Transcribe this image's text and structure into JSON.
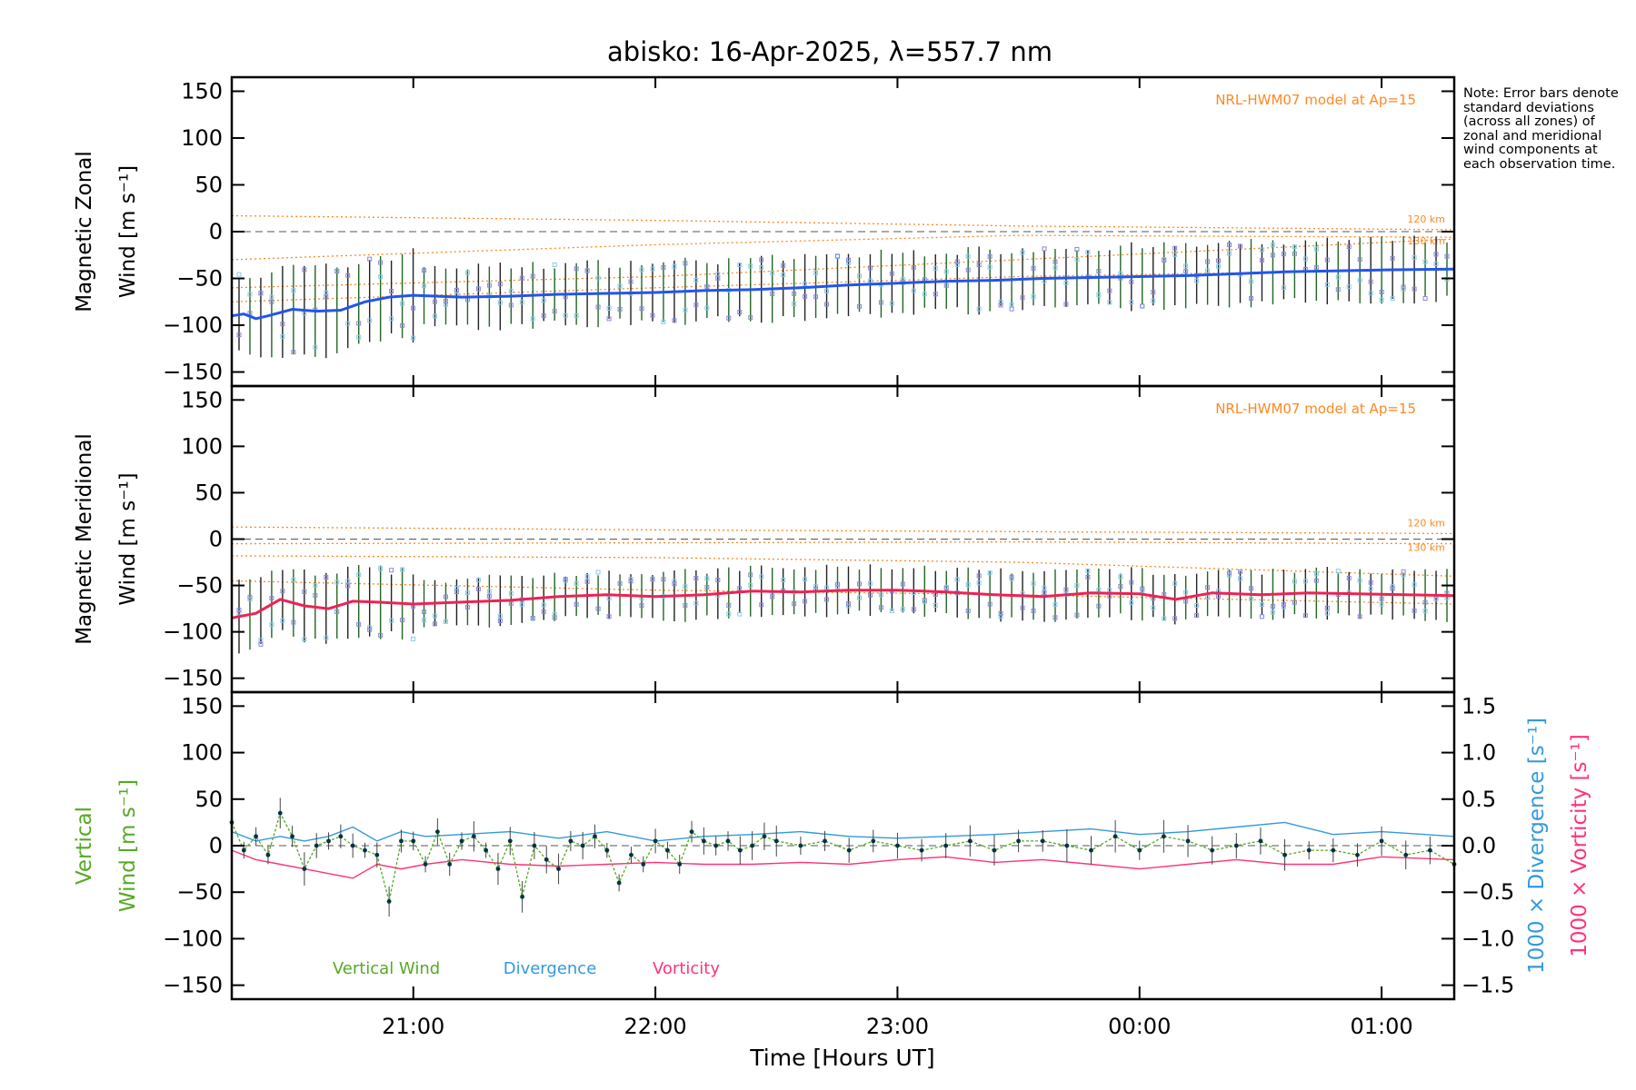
{
  "title": "abisko: 16-Apr-2025, λ=557.7 nm",
  "note": "Note: Error bars denote standard deviations (across all zones) of zonal and meridional wind components at each observation time.",
  "colors": {
    "zonal": "#2255ee",
    "meridional": "#ee2255",
    "vertical": "#55aa22",
    "divergence": "#3399dd",
    "vorticity": "#ff3377",
    "model": "#ff8822",
    "errorbar": "#222222",
    "errorbar_alt": "#226622",
    "zone_markers": "#8888dd",
    "zone_markers_alt": "#88ccee"
  },
  "chart_data": [
    {
      "type": "line",
      "panel": "zonal",
      "ylabel_line1": "Magnetic Zonal",
      "ylabel_line2": "Wind [m s⁻¹]",
      "ylim": [
        -165,
        165
      ],
      "yticks": [
        150,
        100,
        50,
        0,
        -50,
        -100,
        -150
      ],
      "xlim": [
        20.25,
        25.3
      ],
      "model_label": "NRL-HWM07 model at Ap=15",
      "model_alt_labels": [
        "120 km",
        "130 km"
      ],
      "model_series": [
        {
          "x": [
            20.25,
            22.0,
            23.5,
            25.3
          ],
          "y": [
            17,
            12,
            6,
            2
          ]
        },
        {
          "x": [
            20.25,
            22.0,
            23.5,
            25.3
          ],
          "y": [
            -30,
            -14,
            -4,
            -6
          ]
        },
        {
          "x": [
            20.25,
            22.0,
            23.5,
            25.3
          ],
          "y": [
            -60,
            -48,
            -30,
            -8
          ]
        },
        {
          "x": [
            20.25,
            22.0,
            23.5,
            25.3
          ],
          "y": [
            -75,
            -60,
            -48,
            -40
          ]
        }
      ],
      "series": [
        {
          "x": [
            20.25,
            20.3,
            20.35,
            20.4,
            20.5,
            20.6,
            20.7,
            20.8,
            20.9,
            21.0,
            21.2,
            21.4,
            21.6,
            21.8,
            22.0,
            22.2,
            22.4,
            22.6,
            22.8,
            23.0,
            23.2,
            23.4,
            23.6,
            23.8,
            24.0,
            24.2,
            24.4,
            24.6,
            24.8,
            25.0,
            25.3
          ],
          "y": [
            -90,
            -88,
            -93,
            -90,
            -83,
            -85,
            -84,
            -75,
            -70,
            -68,
            -70,
            -69,
            -67,
            -66,
            -65,
            -63,
            -62,
            -60,
            -57,
            -55,
            -53,
            -52,
            -50,
            -49,
            -48,
            -47,
            -45,
            -43,
            -42,
            -41,
            -40
          ]
        }
      ],
      "error_std": 32
    },
    {
      "type": "line",
      "panel": "meridional",
      "ylabel_line1": "Magnetic Meridional",
      "ylabel_line2": "Wind [m s⁻¹]",
      "ylim": [
        -165,
        165
      ],
      "yticks": [
        150,
        100,
        50,
        0,
        -50,
        -100,
        -150
      ],
      "xlim": [
        20.25,
        25.3
      ],
      "model_label": "NRL-HWM07 model at Ap=15",
      "model_alt_labels": [
        "120 km",
        "130 km"
      ],
      "model_series": [
        {
          "x": [
            20.25,
            22.0,
            23.5,
            25.3
          ],
          "y": [
            13,
            10,
            8,
            6
          ]
        },
        {
          "x": [
            20.25,
            22.0,
            23.5,
            25.3
          ],
          "y": [
            -5,
            -4,
            -3,
            -5
          ]
        },
        {
          "x": [
            20.25,
            22.0,
            23.5,
            25.3
          ],
          "y": [
            -18,
            -20,
            -25,
            -40
          ]
        },
        {
          "x": [
            20.25,
            22.0,
            23.5,
            25.3
          ],
          "y": [
            -45,
            -55,
            -60,
            -70
          ]
        }
      ],
      "series": [
        {
          "x": [
            20.25,
            20.35,
            20.45,
            20.55,
            20.65,
            20.75,
            20.85,
            21.0,
            21.2,
            21.4,
            21.6,
            21.8,
            22.0,
            22.2,
            22.4,
            22.6,
            22.8,
            23.0,
            23.2,
            23.4,
            23.6,
            23.8,
            24.0,
            24.15,
            24.3,
            24.5,
            24.7,
            24.9,
            25.1,
            25.3
          ],
          "y": [
            -85,
            -80,
            -65,
            -72,
            -75,
            -67,
            -68,
            -70,
            -68,
            -66,
            -62,
            -60,
            -62,
            -60,
            -56,
            -57,
            -55,
            -55,
            -57,
            -60,
            -62,
            -58,
            -59,
            -65,
            -58,
            -60,
            -58,
            -59,
            -60,
            -61
          ]
        }
      ],
      "error_std": 25
    },
    {
      "type": "line",
      "panel": "vertical",
      "ylabel_line1": "Vertical",
      "ylabel_line2": "Wind [m s⁻¹]",
      "ylabel_right1": "1000 × Divergence [s⁻¹]",
      "ylabel_right2": "1000 × Vorticity [s⁻¹]",
      "ylim": [
        -165,
        165
      ],
      "yticks": [
        150,
        100,
        50,
        0,
        -50,
        -100,
        -150
      ],
      "y2lim": [
        -1.65,
        1.65
      ],
      "y2ticks": [
        1.5,
        1.0,
        0.5,
        0.0,
        -0.5,
        -1.0,
        -1.5
      ],
      "y2ticklabels": [
        "1.5",
        "1.0",
        "0.5",
        "0.0",
        "−0.5",
        "−1.0",
        "−1.5"
      ],
      "xlim": [
        20.25,
        25.3
      ],
      "xticks": [
        21,
        22,
        23,
        24,
        25
      ],
      "xticklabels": [
        "21:00",
        "22:00",
        "23:00",
        "00:00",
        "01:00"
      ],
      "xlabel": "Time [Hours UT]",
      "legend": [
        "Vertical Wind",
        "Divergence",
        "Vorticity"
      ],
      "series": [
        {
          "name": "Vertical Wind",
          "x": [
            20.25,
            20.3,
            20.35,
            20.4,
            20.45,
            20.5,
            20.55,
            20.6,
            20.65,
            20.7,
            20.75,
            20.8,
            20.85,
            20.9,
            20.95,
            21.0,
            21.05,
            21.1,
            21.15,
            21.2,
            21.25,
            21.3,
            21.35,
            21.4,
            21.45,
            21.5,
            21.55,
            21.6,
            21.65,
            21.7,
            21.75,
            21.8,
            21.85,
            21.9,
            21.95,
            22.0,
            22.05,
            22.1,
            22.15,
            22.2,
            22.25,
            22.3,
            22.35,
            22.4,
            22.45,
            22.5,
            22.6,
            22.7,
            22.8,
            22.9,
            23.0,
            23.1,
            23.2,
            23.3,
            23.4,
            23.5,
            23.6,
            23.7,
            23.8,
            23.9,
            24.0,
            24.1,
            24.2,
            24.3,
            24.4,
            24.5,
            24.6,
            24.7,
            24.8,
            24.9,
            25.0,
            25.1,
            25.2,
            25.3
          ],
          "y": [
            25,
            -5,
            10,
            -10,
            35,
            10,
            -25,
            0,
            5,
            10,
            0,
            -5,
            -10,
            -60,
            5,
            5,
            -20,
            15,
            -20,
            5,
            10,
            -5,
            -25,
            5,
            -55,
            0,
            -15,
            -25,
            5,
            0,
            10,
            -5,
            -40,
            -10,
            -20,
            5,
            -5,
            -20,
            15,
            5,
            0,
            5,
            -5,
            0,
            10,
            5,
            0,
            5,
            -5,
            5,
            0,
            -5,
            0,
            5,
            -5,
            5,
            5,
            0,
            -5,
            10,
            -5,
            10,
            5,
            -5,
            0,
            5,
            -10,
            -5,
            -5,
            -10,
            5,
            -10,
            -5,
            -20
          ]
        },
        {
          "name": "Divergence",
          "x": [
            20.25,
            20.35,
            20.45,
            20.55,
            20.65,
            20.75,
            20.85,
            20.95,
            21.05,
            21.2,
            21.4,
            21.6,
            21.8,
            22.0,
            22.2,
            22.4,
            22.6,
            22.8,
            23.0,
            23.2,
            23.4,
            23.6,
            23.8,
            24.0,
            24.2,
            24.4,
            24.6,
            24.8,
            25.0,
            25.3
          ],
          "y": [
            0.15,
            0.05,
            0.1,
            0.05,
            0.1,
            0.2,
            0.05,
            0.15,
            0.1,
            0.12,
            0.15,
            0.08,
            0.15,
            0.05,
            0.1,
            0.12,
            0.15,
            0.1,
            0.08,
            0.1,
            0.12,
            0.15,
            0.18,
            0.12,
            0.15,
            0.2,
            0.25,
            0.12,
            0.15,
            0.1
          ]
        },
        {
          "name": "Vorticity",
          "x": [
            20.25,
            20.35,
            20.45,
            20.55,
            20.65,
            20.75,
            20.85,
            20.95,
            21.05,
            21.2,
            21.4,
            21.6,
            21.8,
            22.0,
            22.2,
            22.4,
            22.6,
            22.8,
            23.0,
            23.2,
            23.4,
            23.6,
            23.8,
            24.0,
            24.2,
            24.4,
            24.6,
            24.8,
            25.0,
            25.3
          ],
          "y": [
            -0.05,
            -0.15,
            -0.2,
            -0.25,
            -0.3,
            -0.35,
            -0.2,
            -0.25,
            -0.2,
            -0.15,
            -0.2,
            -0.22,
            -0.2,
            -0.18,
            -0.2,
            -0.2,
            -0.18,
            -0.2,
            -0.15,
            -0.12,
            -0.18,
            -0.15,
            -0.2,
            -0.25,
            -0.2,
            -0.15,
            -0.2,
            -0.2,
            -0.12,
            -0.15
          ]
        }
      ]
    }
  ]
}
